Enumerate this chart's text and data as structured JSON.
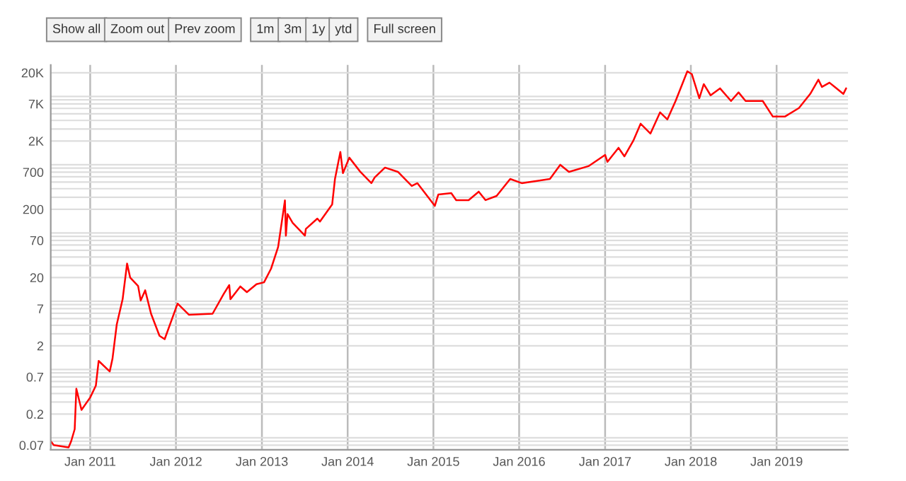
{
  "chart_data": {
    "type": "line",
    "log": true,
    "grid": true,
    "marker": "none",
    "line_style": "solid",
    "annotations": [
      "Show all",
      "Zoom out",
      "Prev zoom",
      "1m",
      "3m",
      "1y",
      "ytd",
      "Full screen"
    ],
    "xlim": [
      "2010-07-17",
      "2019-11-01"
    ],
    "xticks": [
      {
        "value": "2011-01-01",
        "label": "Jan 2011"
      },
      {
        "value": "2012-01-01",
        "label": "Jan 2012"
      },
      {
        "value": "2013-01-01",
        "label": "Jan 2013"
      },
      {
        "value": "2014-01-01",
        "label": "Jan 2014"
      },
      {
        "value": "2015-01-01",
        "label": "Jan 2015"
      },
      {
        "value": "2016-01-01",
        "label": "Jan 2016"
      },
      {
        "value": "2017-01-01",
        "label": "Jan 2017"
      },
      {
        "value": "2018-01-01",
        "label": "Jan 2018"
      },
      {
        "value": "2019-01-01",
        "label": "Jan 2019"
      }
    ],
    "ylim": [
      0.06,
      26000
    ],
    "yticks": [
      0.07,
      0.2,
      0.7,
      2,
      7,
      20,
      70,
      200,
      700,
      {
        "value": 2000,
        "label": "2K"
      },
      {
        "value": 7000,
        "label": "7K"
      },
      {
        "value": 20000,
        "label": "20K"
      }
    ],
    "series": [
      {
        "color": "#ff0000",
        "x": [
          "2010-07-17",
          "2010-07-30",
          "2010-10-01",
          "2010-10-12",
          "2010-10-27",
          "2010-11-03",
          "2010-11-25",
          "2011-01-01",
          "2011-01-25",
          "2011-02-06",
          "2011-03-25",
          "2011-04-06",
          "2011-04-24",
          "2011-05-19",
          "2011-06-07",
          "2011-06-20",
          "2011-07-24",
          "2011-08-04",
          "2011-08-23",
          "2011-09-17",
          "2011-10-23",
          "2011-11-14",
          "2012-01-08",
          "2012-02-25",
          "2012-06-05",
          "2012-07-23",
          "2012-08-15",
          "2012-08-20",
          "2012-10-01",
          "2012-10-29",
          "2012-12-09",
          "2013-01-10",
          "2013-02-09",
          "2013-03-11",
          "2013-04-09",
          "2013-04-13",
          "2013-04-20",
          "2013-05-12",
          "2013-07-03",
          "2013-07-07",
          "2013-08-25",
          "2013-09-05",
          "2013-10-27",
          "2013-11-08",
          "2013-12-01",
          "2013-12-12",
          "2014-01-08",
          "2014-02-24",
          "2014-04-12",
          "2014-04-26",
          "2014-06-09",
          "2014-08-03",
          "2014-10-01",
          "2014-10-25",
          "2015-01-07",
          "2015-01-22",
          "2015-03-18",
          "2015-04-08",
          "2015-05-31",
          "2015-07-13",
          "2015-08-11",
          "2015-09-27",
          "2015-11-24",
          "2016-01-12",
          "2016-05-11",
          "2016-06-24",
          "2016-07-31",
          "2016-10-22",
          "2017-01-01",
          "2017-01-11",
          "2017-02-27",
          "2017-03-24",
          "2017-05-01",
          "2017-06-01",
          "2017-07-13",
          "2017-08-23",
          "2017-09-23",
          "2017-10-28",
          "2017-12-17",
          "2018-01-05",
          "2018-02-06",
          "2018-02-25",
          "2018-03-26",
          "2018-05-05",
          "2018-06-21",
          "2018-07-23",
          "2018-08-22",
          "2018-11-03",
          "2018-12-16",
          "2019-02-05",
          "2019-04-06",
          "2019-05-24",
          "2019-06-28",
          "2019-07-13",
          "2019-08-14",
          "2019-09-05",
          "2019-10-12",
          "2019-10-24"
        ],
        "values": [
          0.08,
          0.07,
          0.065,
          0.08,
          0.12,
          0.47,
          0.23,
          0.35,
          0.52,
          1.2,
          0.84,
          1.3,
          4.1,
          9.6,
          32,
          20,
          15,
          9.2,
          13,
          5.9,
          2.8,
          2.5,
          8.3,
          5.7,
          5.9,
          11.6,
          15.5,
          9.6,
          14.8,
          12.2,
          16,
          17,
          27,
          56,
          270,
          82,
          170,
          126,
          82,
          103,
          146,
          132,
          235,
          556,
          1380,
          676,
          1140,
          706,
          482,
          583,
          815,
          706,
          438,
          482,
          224,
          329,
          345,
          272,
          272,
          362,
          272,
          313,
          556,
          482,
          556,
          897,
          706,
          855,
          1250,
          990,
          1590,
          1190,
          2020,
          3580,
          2570,
          5250,
          4140,
          7710,
          21000,
          19100,
          8470,
          13600,
          9330,
          11800,
          7710,
          10300,
          7710,
          7710,
          4550,
          4550,
          6070,
          9770,
          15800,
          12400,
          14300,
          12400,
          9770,
          11800
        ]
      }
    ]
  }
}
